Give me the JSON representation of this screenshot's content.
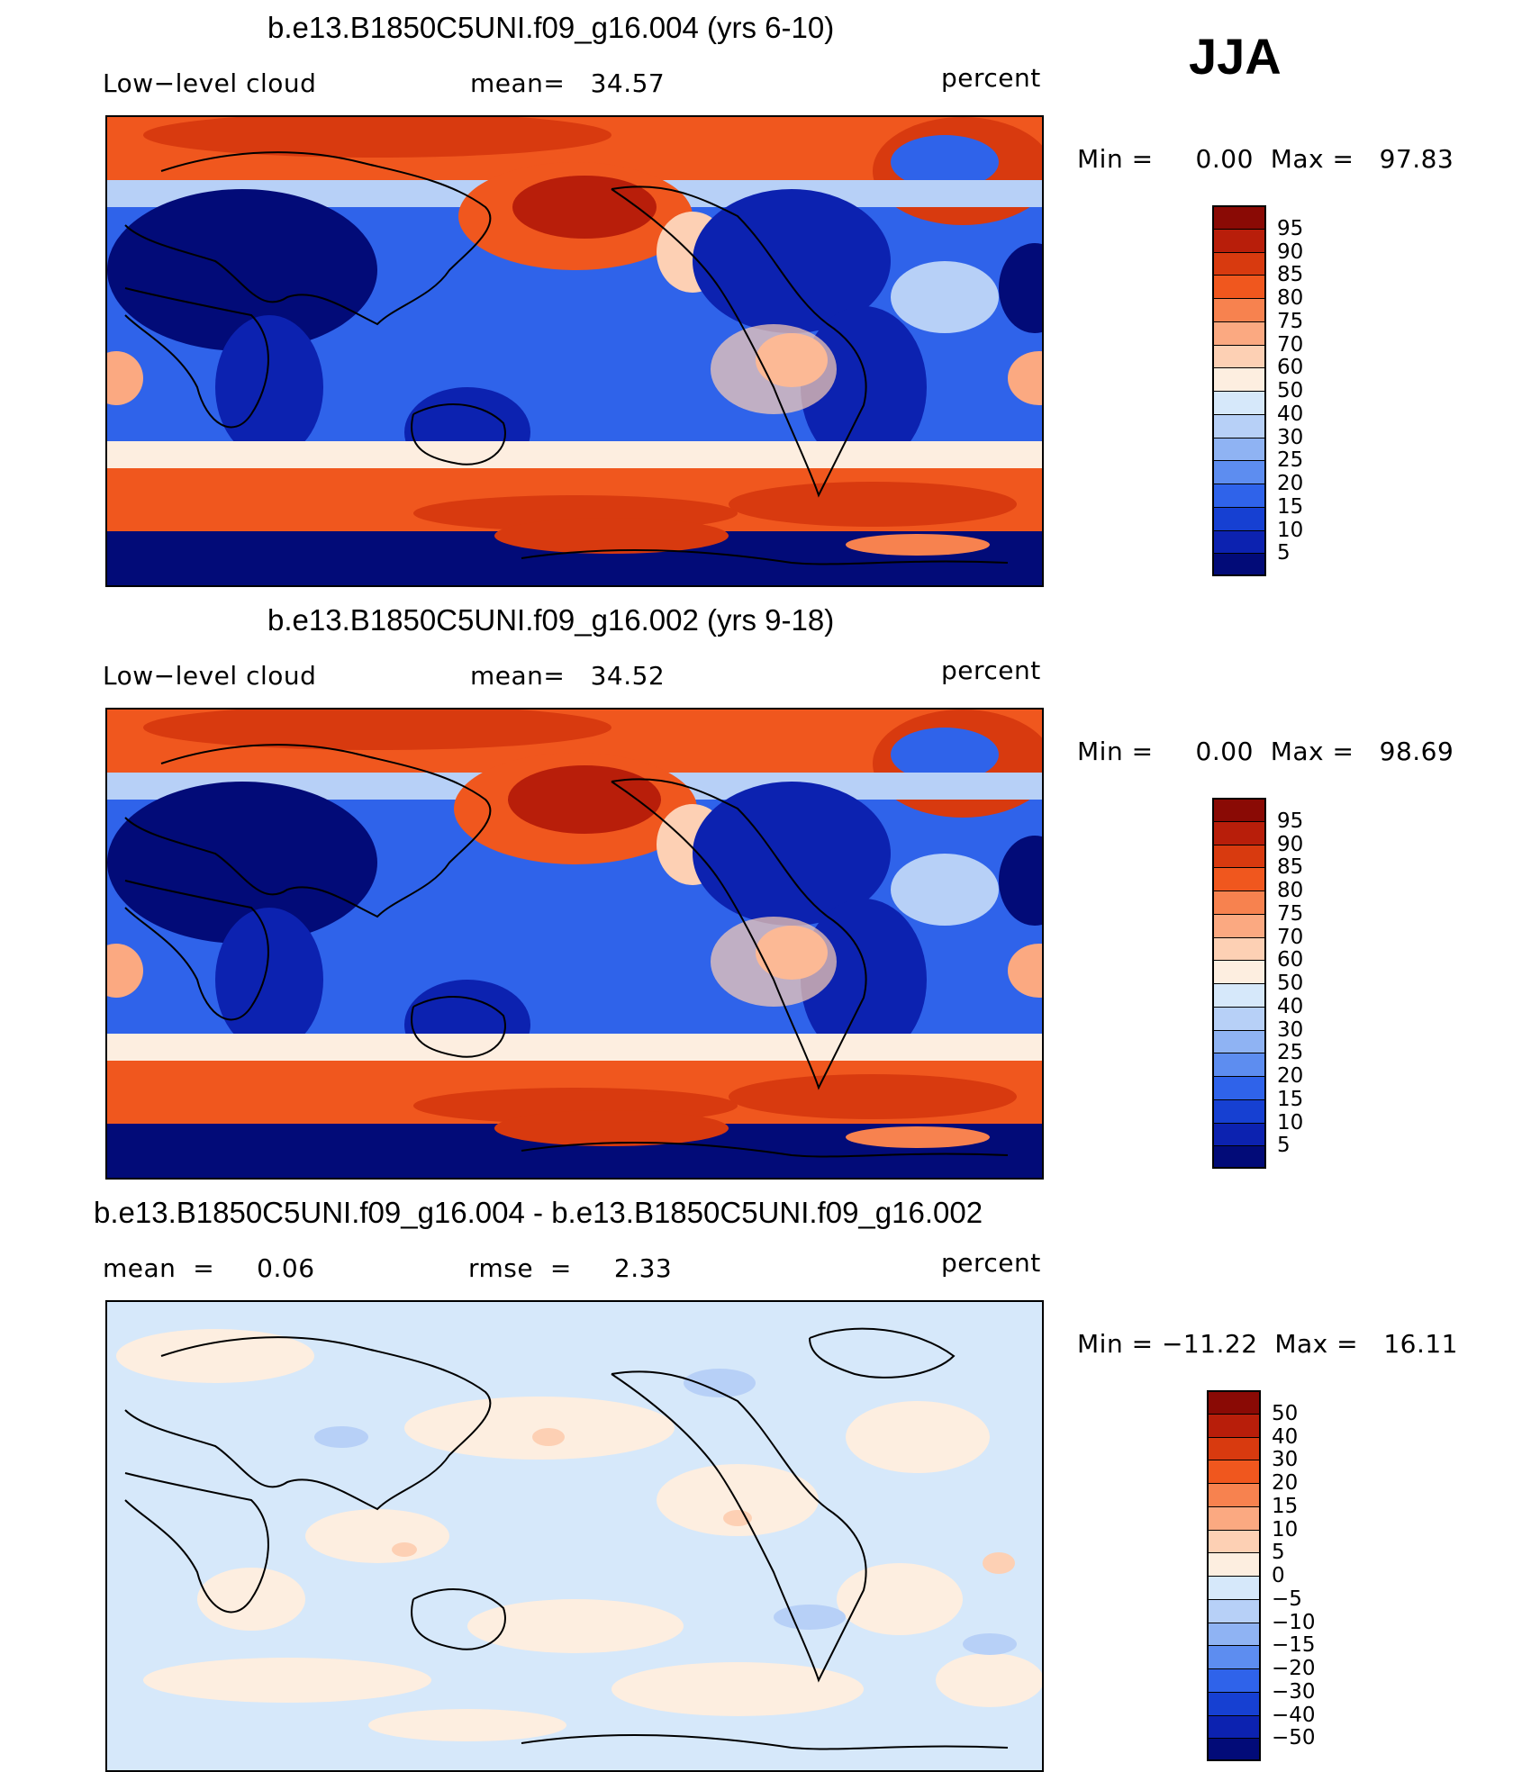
{
  "season": "JJA",
  "panels": [
    {
      "title": "b.e13.B1850C5UNI.f09_g16.004 (yrs 6-10)",
      "left_label": "Low−level cloud",
      "center_label": "mean=   34.57",
      "right_label": "percent",
      "minmax": "Min =     0.00  Max =   97.83"
    },
    {
      "title": "b.e13.B1850C5UNI.f09_g16.002 (yrs 9-18)",
      "left_label": "Low−level cloud",
      "center_label": "mean=   34.52",
      "right_label": "percent",
      "minmax": "Min =     0.00  Max =   98.69"
    },
    {
      "title": "b.e13.B1850C5UNI.f09_g16.004 - b.e13.B1850C5UNI.f09_g16.002",
      "left_label": "mean  =     0.06",
      "center_label": "rmse  =     2.33",
      "right_label": "percent",
      "minmax": "Min = −11.22  Max =   16.11"
    }
  ],
  "colorbars": [
    {
      "labels": [
        "95",
        "90",
        "85",
        "80",
        "75",
        "70",
        "60",
        "50",
        "40",
        "30",
        "25",
        "20",
        "15",
        "10",
        "5"
      ],
      "colors": [
        "#8a0a05",
        "#b81e0a",
        "#d83a0f",
        "#f0571e",
        "#f7824f",
        "#fba981",
        "#fdd0b4",
        "#fdeee0",
        "#d6e8fa",
        "#b7d0f7",
        "#8fb3f3",
        "#5d8df0",
        "#2f63ea",
        "#1640d2",
        "#0c22b0",
        "#020b78"
      ]
    },
    {
      "labels": [
        "95",
        "90",
        "85",
        "80",
        "75",
        "70",
        "60",
        "50",
        "40",
        "30",
        "25",
        "20",
        "15",
        "10",
        "5"
      ],
      "colors": [
        "#8a0a05",
        "#b81e0a",
        "#d83a0f",
        "#f0571e",
        "#f7824f",
        "#fba981",
        "#fdd0b4",
        "#fdeee0",
        "#d6e8fa",
        "#b7d0f7",
        "#8fb3f3",
        "#5d8df0",
        "#2f63ea",
        "#1640d2",
        "#0c22b0",
        "#020b78"
      ]
    },
    {
      "labels": [
        "50",
        "40",
        "30",
        "20",
        "15",
        "10",
        "5",
        "0",
        "−5",
        "−10",
        "−15",
        "−20",
        "−30",
        "−40",
        "−50"
      ],
      "colors": [
        "#8a0a05",
        "#b81e0a",
        "#d83a0f",
        "#f0571e",
        "#f7824f",
        "#fba981",
        "#fdd0b4",
        "#fdeee0",
        "#d6e8fa",
        "#b7d0f7",
        "#8fb3f3",
        "#5d8df0",
        "#2f63ea",
        "#1640d2",
        "#0c22b0",
        "#020b78"
      ]
    }
  ],
  "chart_data": [
    {
      "type": "heatmap",
      "title": "b.e13.B1850C5UNI.f09_g16.004 (yrs 6-10)",
      "variable": "Low−level cloud",
      "units": "percent",
      "mean": 34.57,
      "min": 0.0,
      "max": 97.83,
      "contour_levels": [
        5,
        10,
        15,
        20,
        25,
        30,
        40,
        50,
        60,
        70,
        75,
        80,
        85,
        90,
        95
      ]
    },
    {
      "type": "heatmap",
      "title": "b.e13.B1850C5UNI.f09_g16.002 (yrs 9-18)",
      "variable": "Low−level cloud",
      "units": "percent",
      "mean": 34.52,
      "min": 0.0,
      "max": 98.69,
      "contour_levels": [
        5,
        10,
        15,
        20,
        25,
        30,
        40,
        50,
        60,
        70,
        75,
        80,
        85,
        90,
        95
      ]
    },
    {
      "type": "heatmap",
      "title": "b.e13.B1850C5UNI.f09_g16.004 - b.e13.B1850C5UNI.f09_g16.002",
      "units": "percent",
      "mean": 0.06,
      "rmse": 2.33,
      "min": -11.22,
      "max": 16.11,
      "contour_levels": [
        -50,
        -40,
        -30,
        -20,
        -15,
        -10,
        -5,
        0,
        5,
        10,
        15,
        20,
        30,
        40,
        50
      ]
    }
  ]
}
